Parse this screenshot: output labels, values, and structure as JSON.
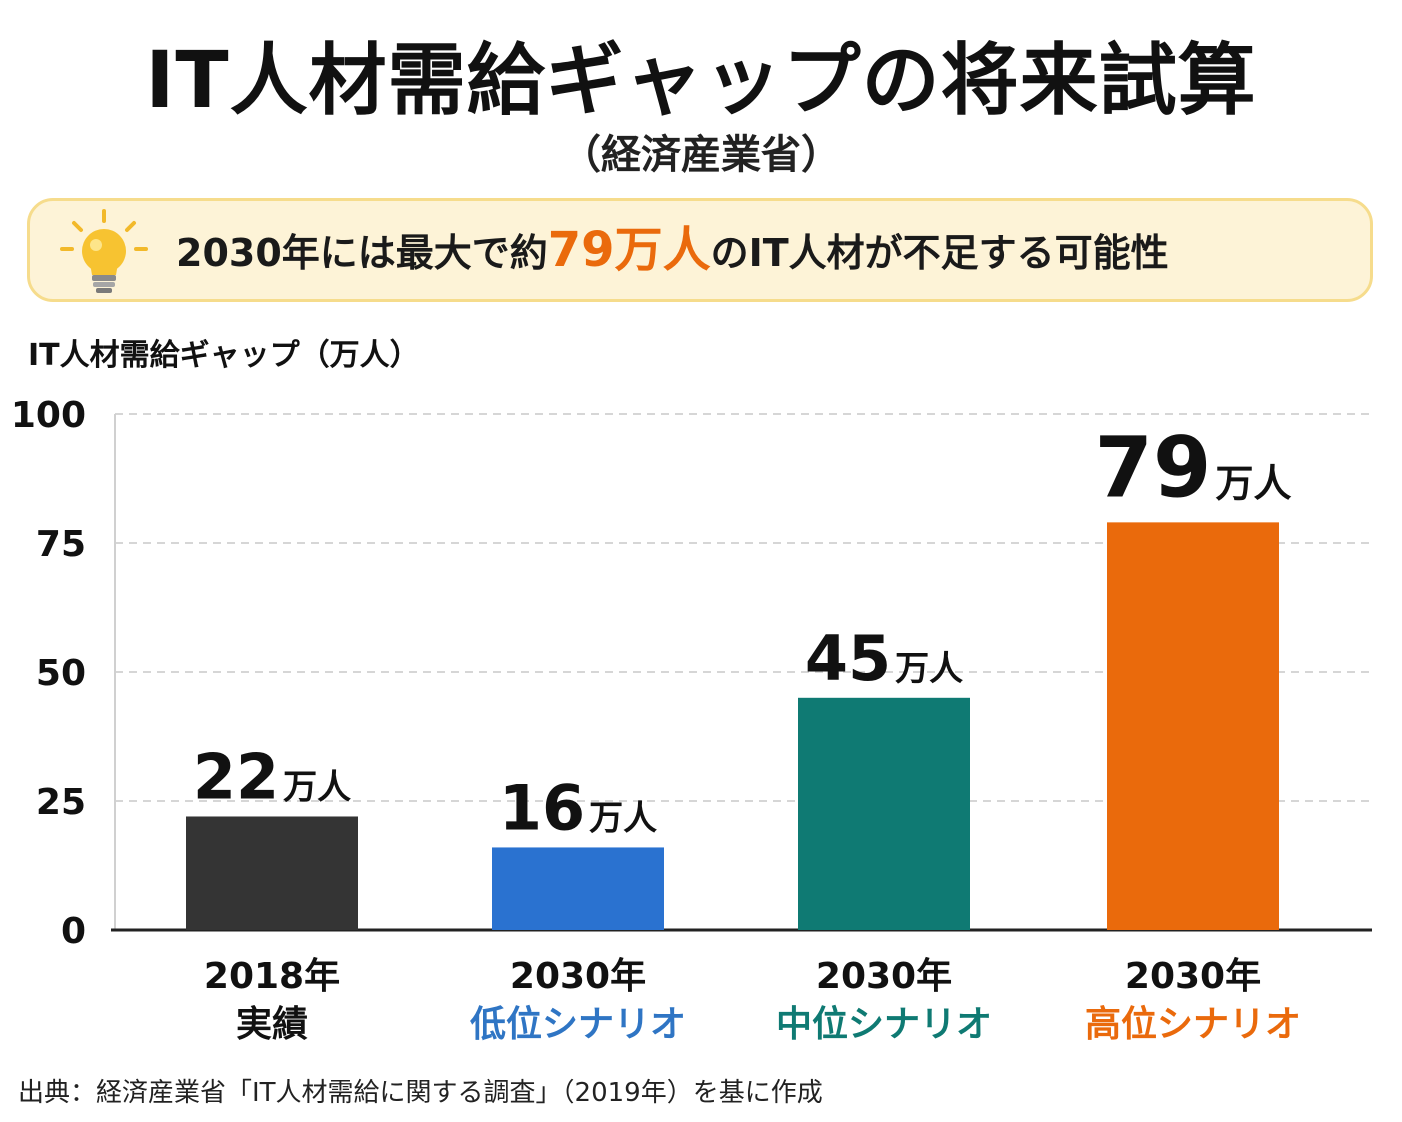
{
  "header": {
    "title": "IT人材需給ギャップの将来試算",
    "subtitle": "（経済産業省）"
  },
  "callout": {
    "icon": "lightbulb-icon",
    "text_before": "2030年には最大で約",
    "highlight": "79万人",
    "text_after": "のIT人材が不足する可能性",
    "highlight_color": "#ea6a0c"
  },
  "chart_data": {
    "type": "bar",
    "ylabel": "IT人材需給ギャップ（万人）",
    "ylim": [
      0,
      100
    ],
    "yticks": [
      "0",
      "25",
      "50",
      "75",
      "100"
    ],
    "grid": true,
    "unit_suffix": "万人",
    "categories": [
      {
        "year": "2018年",
        "sub": "実績",
        "sub_color": "#111111"
      },
      {
        "year": "2030年",
        "sub": "低位シナリオ",
        "sub_color": "#2f75c4"
      },
      {
        "year": "2030年",
        "sub": "中位シナリオ",
        "sub_color": "#0f7a73"
      },
      {
        "year": "2030年",
        "sub": "高位シナリオ",
        "sub_color": "#ea6a0c"
      }
    ],
    "values": [
      22,
      16,
      45,
      79
    ],
    "value_labels": [
      "22",
      "16",
      "45",
      "79"
    ],
    "bar_colors": [
      "#343434",
      "#2a72d0",
      "#0f7a73",
      "#ea6a0c"
    ]
  },
  "footer": {
    "source": "出典：経済産業省「IT人材需給に関する調査」（2019年）を基に作成"
  }
}
